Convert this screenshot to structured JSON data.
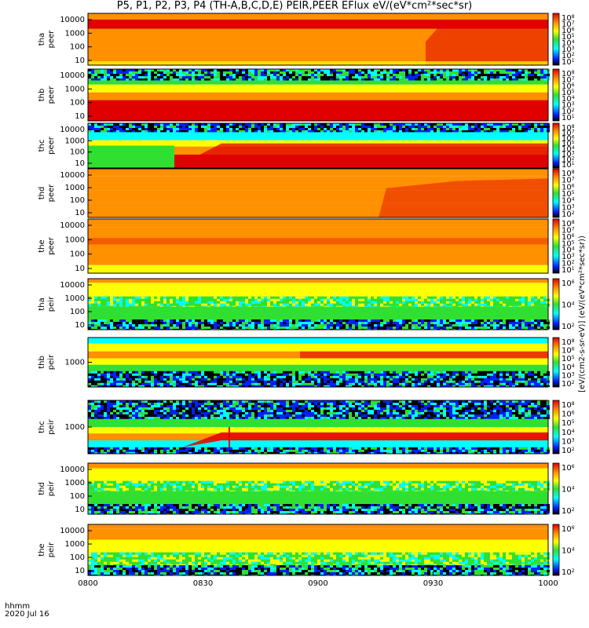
{
  "title": "P5, P1, P2, P3, P4 (TH-A,B,C,D,E) PEIR,PEER EFlux eV/(eV*cm²*sec*sr)",
  "footer": {
    "line1": "hhmm",
    "line2": "2020 Jul 16"
  },
  "colorbar_unit_label": "[eV/(cm2-s-sr-eV)] (eV/(eV*cm²*sec*sr))",
  "palette": {
    "black": "#000000",
    "blue": "#0020ff",
    "cyan": "#00ffff",
    "green": "#30e030",
    "yellow": "#ffff00",
    "orange": "#ff9000",
    "red": "#e00000"
  },
  "chart_data": {
    "type": "heatmap",
    "x": {
      "label": "hhmm",
      "date": "2020 Jul 16",
      "ticks": [
        "0800",
        "0830",
        "0900",
        "0930",
        "1000"
      ],
      "range_min": [
        0,
        120
      ]
    },
    "panels": [
      {
        "id": "tha-peer",
        "ylabel": [
          "tha",
          "peer"
        ],
        "yticks": [
          "10000",
          "1000",
          "100",
          "10"
        ],
        "cbar_ticks": [
          "10^8",
          "10^7",
          "10^6",
          "10^5",
          "10^4",
          "10^3",
          "10^2",
          "10^1"
        ],
        "description": "electron flux high (red/orange) across energies; enhancement after ~0920"
      },
      {
        "id": "thb-peer",
        "ylabel": [
          "thb",
          "peer"
        ],
        "yticks": [
          "10000",
          "1000",
          "100",
          "10"
        ],
        "cbar_ticks": [
          "10^8",
          "10^7",
          "10^6",
          "10^5",
          "10^4",
          "10^3",
          "10^2",
          "10^1"
        ]
      },
      {
        "id": "thc-peer",
        "ylabel": [
          "thc",
          "peer"
        ],
        "yticks": [
          "10000",
          "1000",
          "100",
          "10"
        ],
        "cbar_ticks": [
          "10^8",
          "10^7",
          "10^6",
          "10^5",
          "10^4",
          "10^3",
          "10^2",
          "10^1"
        ]
      },
      {
        "id": "thd-peer",
        "ylabel": [
          "thd",
          "peer"
        ],
        "yticks": [
          "10000",
          "1000",
          "100",
          "10"
        ],
        "cbar_ticks": [
          "10^8",
          "10^7",
          "10^6",
          "10^5",
          "10^4",
          "10^3",
          "10^2"
        ]
      },
      {
        "id": "the-peer",
        "ylabel": [
          "the",
          "peer"
        ],
        "yticks": [
          "10000",
          "1000",
          "100",
          "10"
        ],
        "cbar_ticks": [
          "10^8",
          "10^7",
          "10^6",
          "10^5",
          "10^4",
          "10^3",
          "10^2",
          "10^1"
        ]
      },
      {
        "id": "tha-peir",
        "ylabel": [
          "tha",
          "peir"
        ],
        "yticks": [
          "10000",
          "1000",
          "100",
          "10"
        ],
        "cbar_ticks": [
          "10^6",
          "10^4",
          "10^2"
        ]
      },
      {
        "id": "thb-peir",
        "ylabel": [
          "thb",
          "peir"
        ],
        "yticks": [
          "1000"
        ],
        "cbar_ticks": [
          "10^8",
          "10^6",
          "10^5",
          "10^4",
          "10^3",
          "10^2"
        ]
      },
      {
        "id": "thc-peir",
        "ylabel": [
          "thc",
          "peir"
        ],
        "yticks": [
          "1000"
        ],
        "cbar_ticks": [
          "10^8",
          "10^6",
          "10^5",
          "10^4",
          "10^3",
          "10^2"
        ]
      },
      {
        "id": "thd-peir",
        "ylabel": [
          "thd",
          "peir"
        ],
        "yticks": [
          "10000",
          "1000",
          "100",
          "10"
        ],
        "cbar_ticks": [
          "10^6",
          "10^4",
          "10^2"
        ]
      },
      {
        "id": "the-peir",
        "ylabel": [
          "the",
          "peir"
        ],
        "yticks": [
          "10000",
          "1000",
          "100",
          "10"
        ],
        "cbar_ticks": [
          "10^6",
          "10^4",
          "10^2"
        ]
      }
    ]
  }
}
